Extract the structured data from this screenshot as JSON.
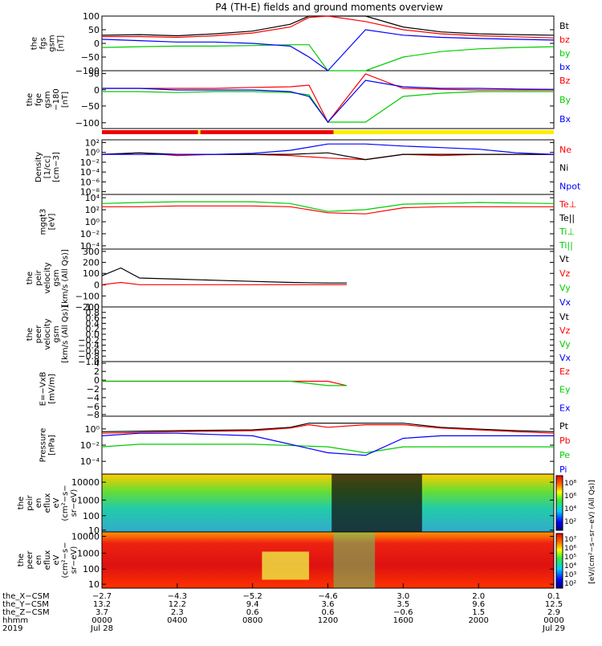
{
  "title": "P4 (TH-E) fields and ground moments overview",
  "panels": [
    {
      "id": "fgs",
      "ylabel": [
        "the",
        "fgs",
        "gsm",
        "[nT]"
      ],
      "ticks": [
        "100",
        "50",
        "0",
        "−50",
        "−100"
      ],
      "legend": [
        {
          "t": "Bt",
          "c": "#000000"
        },
        {
          "t": "bz",
          "c": "#ff0000"
        },
        {
          "t": "by",
          "c": "#00cc00"
        },
        {
          "t": "bx",
          "c": "#0000ff"
        }
      ]
    },
    {
      "id": "fge",
      "ylabel": [
        "the",
        "fge",
        "gsm",
        "−180",
        "[nT]"
      ],
      "ticks": [
        "50",
        "0",
        "−50",
        "−100"
      ],
      "legend": [
        {
          "t": "Bz",
          "c": "#ff0000"
        },
        {
          "t": "By",
          "c": "#00cc00"
        },
        {
          "t": "Bx",
          "c": "#0000ff"
        }
      ]
    },
    {
      "id": "density",
      "ylabel": [
        "Density",
        "[1/cc]",
        "[cm−3]"
      ],
      "ticks": [
        "10²",
        "10⁰",
        "10⁻²",
        "10⁻⁴",
        "10⁻⁶",
        "10⁻⁸"
      ],
      "legend": [
        {
          "t": "Ne",
          "c": "#ff0000"
        },
        {
          "t": "Ni",
          "c": "#000000"
        },
        {
          "t": "Npot",
          "c": "#0000ff"
        }
      ]
    },
    {
      "id": "temp",
      "ylabel": [
        "mgqt3",
        "[eV]"
      ],
      "ticks": [
        "10⁴",
        "10²",
        "10⁰",
        "10⁻²",
        "10⁻⁴"
      ],
      "legend": [
        {
          "t": "Te⊥",
          "c": "#ff0000"
        },
        {
          "t": "Te||",
          "c": "#000000"
        },
        {
          "t": "Ti⊥",
          "c": "#00cc00"
        },
        {
          "t": "Ti||",
          "c": "#00cc00"
        }
      ]
    },
    {
      "id": "peir_vel",
      "ylabel": [
        "the",
        "peir",
        "velocity",
        "gsm",
        "[km/s (All Qs)]"
      ],
      "ticks": [
        "300",
        "200",
        "100",
        "0",
        "−100",
        "−200"
      ],
      "legend": [
        {
          "t": "Vt",
          "c": "#000000"
        },
        {
          "t": "Vz",
          "c": "#ff0000"
        },
        {
          "t": "Vy",
          "c": "#00cc00"
        },
        {
          "t": "Vx",
          "c": "#0000ff"
        }
      ]
    },
    {
      "id": "peer_vel",
      "ylabel": [
        "the",
        "peer",
        "velocity",
        "gsm",
        "[km/s (All Qs)]"
      ],
      "ticks": [
        "1.0",
        "0.8",
        "0.6",
        "0.4",
        "0.2",
        "0.0",
        "−0.2",
        "−0.4",
        "−0.6",
        "−0.8",
        "−1.0"
      ],
      "legend": [
        {
          "t": "Vt",
          "c": "#000000"
        },
        {
          "t": "Vz",
          "c": "#ff0000"
        },
        {
          "t": "Vy",
          "c": "#00cc00"
        },
        {
          "t": "Vx",
          "c": "#0000ff"
        }
      ]
    },
    {
      "id": "efield",
      "ylabel": [
        "E=−VxB",
        "[mV/m]"
      ],
      "ticks": [
        "4",
        "2",
        "0",
        "−2",
        "−4",
        "−6",
        "−8"
      ],
      "legend": [
        {
          "t": "Ez",
          "c": "#ff0000"
        },
        {
          "t": "Ey",
          "c": "#00cc00"
        },
        {
          "t": "Ex",
          "c": "#0000ff"
        }
      ]
    },
    {
      "id": "pressure",
      "ylabel": [
        "Pressure",
        "[nPa]"
      ],
      "ticks": [
        "10⁰",
        "10⁻²",
        "10⁻⁴"
      ],
      "legend": [
        {
          "t": "Pt",
          "c": "#000000"
        },
        {
          "t": "Pb",
          "c": "#ff0000"
        },
        {
          "t": "Pe",
          "c": "#00cc00"
        },
        {
          "t": "Pi",
          "c": "#0000ff"
        }
      ]
    },
    {
      "id": "peir_spec",
      "ylabel": [
        "the",
        "peir",
        "en",
        "eflux",
        "eV",
        "(cm²−s−",
        "sr−eV)"
      ],
      "ticks": [
        "10000",
        "1000",
        "100",
        "10"
      ],
      "legend": []
    },
    {
      "id": "peer_spec",
      "ylabel": [
        "the",
        "peer",
        "en",
        "eflux",
        "eV",
        "(cm²−s−",
        "sr−eV)"
      ],
      "ticks": [
        "10000",
        "1000",
        "100",
        "10"
      ],
      "legend": []
    }
  ],
  "colorbar": {
    "label": "[eV/(cm²−s−sr−eV) (All Qs)]",
    "top_ticks": [
      "10⁸",
      "10⁶",
      "10⁴",
      "10²"
    ],
    "bottom_ticks": [
      "10⁷",
      "10⁶",
      "10⁵",
      "10⁴",
      "10³",
      "10²"
    ]
  },
  "xaxis": {
    "row_labels": [
      "the_X−CSM",
      "the_Y−CSM",
      "the_Z−CSM",
      "hhmm",
      "2019"
    ],
    "columns": [
      {
        "x": "−2.7",
        "y": "13.2",
        "z": "3.7",
        "hhmm": "0000",
        "date": "Jul 28"
      },
      {
        "x": "−4.3",
        "y": "12.2",
        "z": "2.3",
        "hhmm": "0400",
        "date": ""
      },
      {
        "x": "−5.2",
        "y": "9.4",
        "z": "0.6",
        "hhmm": "0800",
        "date": ""
      },
      {
        "x": "−4.6",
        "y": "3.6",
        "z": "0.6",
        "hhmm": "1200",
        "date": ""
      },
      {
        "x": "3.0",
        "y": "3.5",
        "z": "−0.6",
        "hhmm": "1600",
        "date": ""
      },
      {
        "x": "2.0",
        "y": "9.6",
        "z": "1.5",
        "hhmm": "2000",
        "date": ""
      },
      {
        "x": "0.1",
        "y": "12.5",
        "z": "2.9",
        "hhmm": "0000",
        "date": "Jul 29"
      }
    ]
  },
  "chart_data": {
    "type": "line",
    "x_hours": [
      0,
      4,
      8,
      12,
      16,
      20,
      24
    ],
    "series": [
      {
        "name": "Bt",
        "panel": "fgs",
        "x": [
          0,
          2,
          4,
          6,
          8,
          10,
          11,
          12,
          14,
          16,
          18,
          20,
          22,
          24
        ],
        "values": [
          30,
          32,
          28,
          35,
          45,
          70,
          100,
          100,
          100,
          60,
          42,
          35,
          32,
          30
        ]
      },
      {
        "name": "bz",
        "panel": "fgs",
        "x": [
          0,
          2,
          4,
          6,
          8,
          10,
          11,
          12,
          14,
          16,
          18,
          20,
          22,
          24
        ],
        "values": [
          25,
          25,
          22,
          28,
          38,
          60,
          95,
          100,
          80,
          50,
          35,
          28,
          24,
          20
        ]
      },
      {
        "name": "by",
        "panel": "fgs",
        "x": [
          0,
          2,
          4,
          6,
          8,
          10,
          11,
          12,
          14,
          16,
          18,
          20,
          22,
          24
        ],
        "values": [
          -15,
          -12,
          -10,
          -10,
          -8,
          -5,
          -5,
          -100,
          -100,
          -50,
          -30,
          -20,
          -15,
          -12
        ]
      },
      {
        "name": "bx",
        "panel": "fgs",
        "x": [
          0,
          2,
          4,
          6,
          8,
          10,
          11,
          12,
          14,
          16,
          18,
          20,
          22,
          24
        ],
        "values": [
          15,
          10,
          5,
          5,
          0,
          -10,
          -50,
          -100,
          50,
          30,
          22,
          18,
          15,
          12
        ]
      },
      {
        "name": "Bz",
        "panel": "fge",
        "x": [
          0,
          2,
          4,
          6,
          8,
          10,
          11,
          12,
          14,
          16,
          18,
          20,
          22,
          24
        ],
        "values": [
          5,
          5,
          5,
          5,
          8,
          10,
          15,
          -100,
          50,
          5,
          2,
          0,
          0,
          0
        ]
      },
      {
        "name": "By",
        "panel": "fge",
        "x": [
          0,
          2,
          4,
          6,
          8,
          10,
          11,
          12,
          14,
          16,
          18,
          20,
          22,
          24
        ],
        "values": [
          -5,
          -5,
          -8,
          -5,
          -5,
          -8,
          -15,
          -100,
          -100,
          -20,
          -10,
          -5,
          -5,
          -5
        ]
      },
      {
        "name": "Bx",
        "panel": "fge",
        "x": [
          0,
          2,
          4,
          6,
          8,
          10,
          11,
          12,
          14,
          16,
          18,
          20,
          22,
          24
        ],
        "values": [
          5,
          5,
          0,
          0,
          0,
          -5,
          -20,
          -100,
          30,
          10,
          5,
          5,
          3,
          2
        ]
      },
      {
        "name": "Ne",
        "panel": "density",
        "log": true,
        "x": [
          0,
          2,
          4,
          6,
          8,
          10,
          12,
          14,
          16,
          18,
          20,
          22,
          24
        ],
        "values": [
          0.5,
          1,
          0.3,
          0.5,
          0.5,
          0.3,
          0.1,
          0.05,
          0.5,
          0.3,
          0.5,
          0.5,
          0.5
        ]
      },
      {
        "name": "Ni",
        "panel": "density",
        "log": true,
        "x": [
          0,
          2,
          4,
          6,
          8,
          10,
          12,
          14,
          16,
          18,
          20,
          22,
          24
        ],
        "values": [
          0.5,
          1,
          0.5,
          0.5,
          0.5,
          0.5,
          1,
          0.05,
          0.5,
          0.5,
          0.5,
          0.5,
          0.5
        ]
      },
      {
        "name": "Npot",
        "panel": "density",
        "log": true,
        "x": [
          0,
          2,
          4,
          6,
          8,
          10,
          12,
          14,
          16,
          18,
          20,
          22,
          24
        ],
        "values": [
          0.5,
          0.5,
          0.5,
          0.5,
          0.8,
          3,
          50,
          50,
          20,
          10,
          5,
          1,
          0.5
        ]
      },
      {
        "name": "Te⊥",
        "panel": "temp",
        "log": true,
        "x": [
          0,
          2,
          4,
          6,
          8,
          10,
          12,
          14,
          16,
          18,
          20,
          22,
          24
        ],
        "values": [
          300,
          300,
          400,
          400,
          400,
          300,
          30,
          20,
          200,
          300,
          300,
          300,
          300
        ]
      },
      {
        "name": "Ti⊥",
        "panel": "temp",
        "log": true,
        "x": [
          0,
          2,
          4,
          6,
          8,
          10,
          12,
          14,
          16,
          18,
          20,
          22,
          24
        ],
        "values": [
          1000,
          1500,
          2000,
          2000,
          2000,
          1000,
          50,
          100,
          800,
          1000,
          1500,
          1200,
          1000
        ]
      },
      {
        "name": "Vt",
        "panel": "peir_vel",
        "x": [
          0,
          1,
          2,
          4,
          6,
          8,
          10,
          12,
          13
        ],
        "values": [
          80,
          150,
          60,
          50,
          40,
          30,
          20,
          15,
          15
        ]
      },
      {
        "name": "Vz",
        "panel": "peir_vel",
        "x": [
          0,
          1,
          2,
          4,
          6,
          8,
          10,
          12,
          13
        ],
        "values": [
          0,
          20,
          0,
          0,
          0,
          0,
          0,
          0,
          0
        ]
      },
      {
        "name": "Ez",
        "panel": "efield",
        "x": [
          0,
          2,
          4,
          6,
          8,
          10,
          12,
          13
        ],
        "values": [
          0,
          0,
          0,
          0,
          0,
          0,
          0,
          -1
        ]
      },
      {
        "name": "Ey",
        "panel": "efield",
        "x": [
          0,
          2,
          4,
          6,
          8,
          10,
          12,
          13
        ],
        "values": [
          0,
          0,
          0,
          0,
          0,
          0,
          -1,
          -1
        ]
      },
      {
        "name": "Pt",
        "panel": "pressure",
        "log": true,
        "x": [
          0,
          4,
          8,
          10,
          11,
          12,
          14,
          16,
          18,
          20,
          22,
          24
        ],
        "values": [
          0.3,
          0.4,
          0.5,
          1,
          3,
          3,
          3,
          3,
          1,
          0.6,
          0.4,
          0.3
        ]
      },
      {
        "name": "Pb",
        "panel": "pressure",
        "log": true,
        "x": [
          0,
          4,
          8,
          10,
          11,
          12,
          14,
          16,
          18,
          20,
          22,
          24
        ],
        "values": [
          0.2,
          0.3,
          0.4,
          0.8,
          2,
          1,
          2,
          2,
          0.8,
          0.5,
          0.3,
          0.2
        ]
      },
      {
        "name": "Pe",
        "panel": "pressure",
        "log": true,
        "x": [
          0,
          2,
          4,
          8,
          12,
          14,
          16,
          18,
          20,
          22,
          24
        ],
        "values": [
          0.005,
          0.01,
          0.01,
          0.01,
          0.005,
          0.001,
          0.005,
          0.005,
          0.005,
          0.005,
          0.005
        ]
      },
      {
        "name": "Pi",
        "panel": "pressure",
        "log": true,
        "x": [
          0,
          2,
          4,
          8,
          12,
          14,
          16,
          18,
          20,
          22,
          24
        ],
        "values": [
          0.1,
          0.2,
          0.2,
          0.1,
          0.001,
          0.0005,
          0.05,
          0.1,
          0.1,
          0.1,
          0.1
        ]
      }
    ]
  }
}
